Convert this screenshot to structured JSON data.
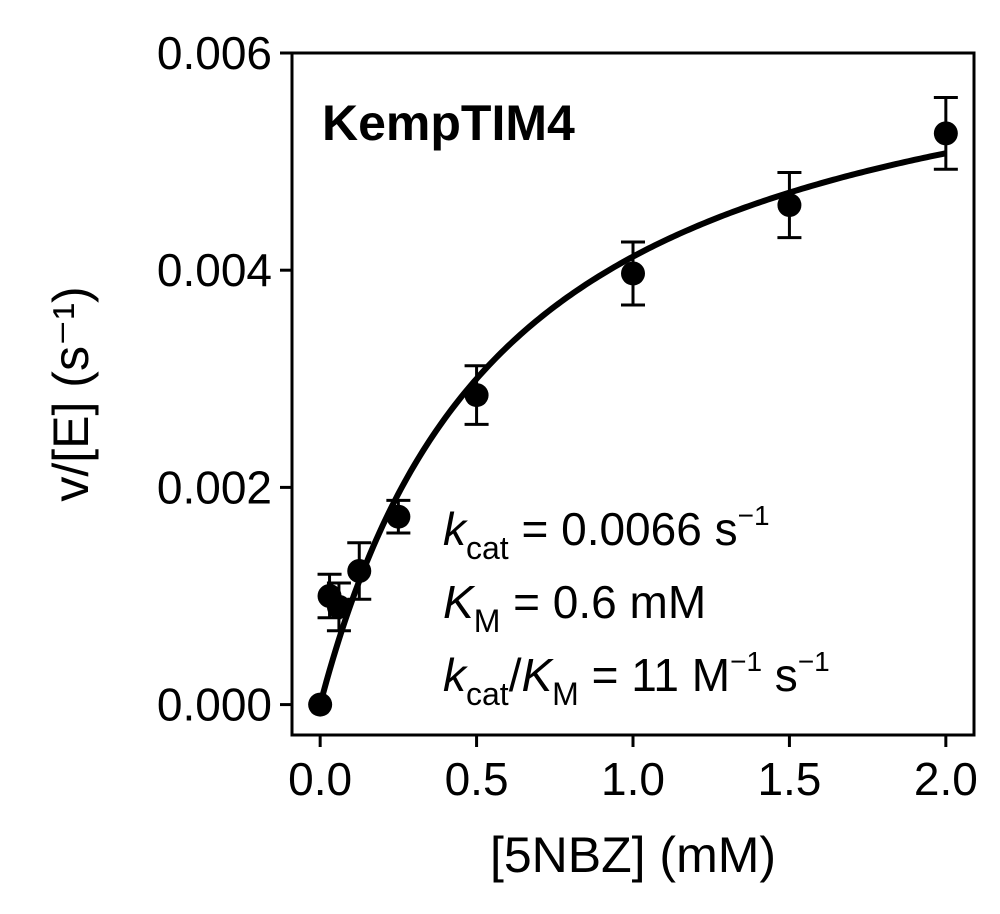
{
  "chart_data": {
    "type": "scatter",
    "title": "KempTIM4",
    "xlabel": "[5NBZ] (mM)",
    "ylabel": "v/[E] (s⁻¹)",
    "xlim": [
      -0.09,
      2.09
    ],
    "ylim": [
      -0.00028,
      0.006
    ],
    "x_ticks": [
      0.0,
      0.5,
      1.0,
      1.5,
      2.0
    ],
    "x_tick_labels": [
      "0.0",
      "0.5",
      "1.0",
      "1.5",
      "2.0"
    ],
    "y_ticks": [
      0.0,
      0.002,
      0.004,
      0.006
    ],
    "y_tick_labels": [
      "0.000",
      "0.002",
      "0.004",
      "0.006"
    ],
    "grid": false,
    "series": [
      {
        "kind": "points_with_errorbars",
        "points": [
          {
            "x": 0.0,
            "y": 0.0,
            "err": 0.0
          },
          {
            "x": 0.03,
            "y": 0.001,
            "err": 0.0002
          },
          {
            "x": 0.06,
            "y": 0.0009,
            "err": 0.00022
          },
          {
            "x": 0.125,
            "y": 0.00123,
            "err": 0.00026
          },
          {
            "x": 0.25,
            "y": 0.00173,
            "err": 0.00015
          },
          {
            "x": 0.5,
            "y": 0.00285,
            "err": 0.00027
          },
          {
            "x": 1.0,
            "y": 0.00397,
            "err": 0.00029
          },
          {
            "x": 1.5,
            "y": 0.0046,
            "err": 0.0003
          },
          {
            "x": 2.0,
            "y": 0.00526,
            "err": 0.00033
          }
        ]
      },
      {
        "kind": "fit_curve",
        "model": "Michaelis-Menten",
        "kcat": 0.0066,
        "KM": 0.6,
        "x_range": [
          0.0,
          2.0
        ]
      }
    ],
    "annotation": {
      "kcat": {
        "symbol": "k",
        "sub": "cat",
        "value": " = 0.0066 s",
        "sup": "−1"
      },
      "KM": {
        "symbol": "K",
        "sub": "M",
        "value": " = 0.6 mM"
      },
      "ratio": {
        "symbol1": "k",
        "sub1": "cat",
        "slash": "/",
        "symbol2": "K",
        "sub2": "M",
        "value": " = 11 M",
        "sup1": "−1",
        "mid": " s",
        "sup2": "−1"
      }
    }
  }
}
